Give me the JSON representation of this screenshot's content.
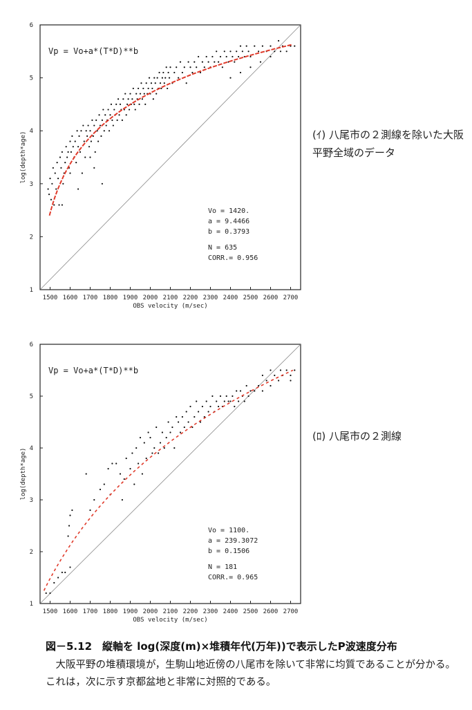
{
  "figure": {
    "caption": "図－5.12　縦軸を log(深度(m)×堆積年代(万年))で表示したP波速度分布",
    "body": "大阪平野の堆積環境が，生駒山地近傍の八尾市を除いて非常に均質であることが分かる。これは，次に示す京都盆地と非常に対照的である。"
  },
  "colors": {
    "fit_curve": "#e03a2a",
    "points": "#111111",
    "frame": "#222222",
    "diagonal": "#8a8a8a"
  },
  "chart_data": [
    {
      "type": "scatter",
      "panel_label": "(ｲ) 八尾市の２測線を除いた大阪平野全域のデータ",
      "xlabel": "OBS velocity (m/sec)",
      "ylabel": "log(depth*age)",
      "formula": "Vp = Vo+a*(T*D)**b",
      "xlim": [
        1450,
        2750
      ],
      "ylim": [
        1,
        6
      ],
      "x_ticks": [
        1500,
        1600,
        1700,
        1800,
        1900,
        2000,
        2100,
        2200,
        2300,
        2400,
        2500,
        2600,
        2700
      ],
      "y_ticks": [
        1,
        2,
        3,
        4,
        5,
        6
      ],
      "params": [
        "Vo = 1420.",
        "a = 9.4466",
        "b = 0.3793",
        "N     = 635",
        "CORR.= 0.956"
      ],
      "fit": {
        "Vo": 1420,
        "a": 9.4466,
        "b": 0.3793,
        "y_range": [
          2.4,
          5.63
        ]
      },
      "diagonal": [
        [
          1450,
          1
        ],
        [
          2750,
          6
        ]
      ],
      "points": [
        [
          1490,
          2.9
        ],
        [
          1495,
          2.8
        ],
        [
          1500,
          3.1
        ],
        [
          1505,
          2.7
        ],
        [
          1510,
          3.0
        ],
        [
          1515,
          3.3
        ],
        [
          1520,
          2.6
        ],
        [
          1525,
          3.2
        ],
        [
          1530,
          2.9
        ],
        [
          1535,
          3.4
        ],
        [
          1540,
          3.1
        ],
        [
          1545,
          2.6
        ],
        [
          1550,
          3.5
        ],
        [
          1555,
          3.3
        ],
        [
          1560,
          3.6
        ],
        [
          1565,
          3.0
        ],
        [
          1570,
          3.2
        ],
        [
          1575,
          3.4
        ],
        [
          1580,
          3.7
        ],
        [
          1585,
          3.5
        ],
        [
          1590,
          3.6
        ],
        [
          1595,
          3.3
        ],
        [
          1600,
          3.8
        ],
        [
          1605,
          3.6
        ],
        [
          1610,
          3.9
        ],
        [
          1615,
          3.7
        ],
        [
          1620,
          3.5
        ],
        [
          1625,
          3.8
        ],
        [
          1630,
          3.4
        ],
        [
          1635,
          4.0
        ],
        [
          1640,
          3.7
        ],
        [
          1645,
          3.9
        ],
        [
          1650,
          3.6
        ],
        [
          1655,
          4.0
        ],
        [
          1660,
          3.2
        ],
        [
          1665,
          4.1
        ],
        [
          1670,
          3.8
        ],
        [
          1675,
          3.5
        ],
        [
          1680,
          4.0
        ],
        [
          1685,
          3.9
        ],
        [
          1690,
          4.1
        ],
        [
          1695,
          3.7
        ],
        [
          1700,
          4.0
        ],
        [
          1705,
          3.8
        ],
        [
          1710,
          4.2
        ],
        [
          1715,
          3.9
        ],
        [
          1720,
          4.1
        ],
        [
          1725,
          3.6
        ],
        [
          1730,
          4.2
        ],
        [
          1735,
          4.0
        ],
        [
          1740,
          3.8
        ],
        [
          1745,
          4.3
        ],
        [
          1750,
          4.1
        ],
        [
          1755,
          3.9
        ],
        [
          1760,
          4.2
        ],
        [
          1765,
          4.4
        ],
        [
          1770,
          4.0
        ],
        [
          1775,
          4.3
        ],
        [
          1780,
          4.1
        ],
        [
          1785,
          4.2
        ],
        [
          1790,
          4.4
        ],
        [
          1795,
          4.0
        ],
        [
          1800,
          4.3
        ],
        [
          1805,
          4.5
        ],
        [
          1810,
          4.2
        ],
        [
          1815,
          4.1
        ],
        [
          1820,
          4.4
        ],
        [
          1825,
          4.3
        ],
        [
          1830,
          4.5
        ],
        [
          1835,
          4.2
        ],
        [
          1840,
          4.6
        ],
        [
          1845,
          4.3
        ],
        [
          1850,
          4.5
        ],
        [
          1855,
          4.4
        ],
        [
          1860,
          4.2
        ],
        [
          1865,
          4.6
        ],
        [
          1870,
          4.4
        ],
        [
          1875,
          4.7
        ],
        [
          1880,
          4.3
        ],
        [
          1885,
          4.5
        ],
        [
          1890,
          4.6
        ],
        [
          1895,
          4.4
        ],
        [
          1900,
          4.7
        ],
        [
          1905,
          4.5
        ],
        [
          1910,
          4.6
        ],
        [
          1915,
          4.8
        ],
        [
          1920,
          4.5
        ],
        [
          1925,
          4.4
        ],
        [
          1930,
          4.7
        ],
        [
          1935,
          4.6
        ],
        [
          1940,
          4.8
        ],
        [
          1945,
          4.5
        ],
        [
          1950,
          4.7
        ],
        [
          1955,
          4.9
        ],
        [
          1960,
          4.6
        ],
        [
          1965,
          4.8
        ],
        [
          1970,
          4.7
        ],
        [
          1975,
          4.5
        ],
        [
          1980,
          4.9
        ],
        [
          1985,
          4.7
        ],
        [
          1990,
          4.8
        ],
        [
          1995,
          5.0
        ],
        [
          2000,
          4.7
        ],
        [
          2005,
          4.9
        ],
        [
          2010,
          4.8
        ],
        [
          2015,
          4.6
        ],
        [
          2020,
          5.0
        ],
        [
          2025,
          4.9
        ],
        [
          2030,
          4.7
        ],
        [
          2035,
          5.0
        ],
        [
          2040,
          4.8
        ],
        [
          2045,
          5.1
        ],
        [
          2050,
          4.9
        ],
        [
          2055,
          4.8
        ],
        [
          2060,
          5.0
        ],
        [
          2065,
          5.1
        ],
        [
          2070,
          4.9
        ],
        [
          2075,
          5.0
        ],
        [
          2080,
          5.2
        ],
        [
          2085,
          4.8
        ],
        [
          2090,
          5.1
        ],
        [
          2095,
          5.0
        ],
        [
          2100,
          5.2
        ],
        [
          2110,
          4.9
        ],
        [
          2120,
          5.1
        ],
        [
          2130,
          5.2
        ],
        [
          2140,
          5.0
        ],
        [
          2150,
          5.3
        ],
        [
          2160,
          5.1
        ],
        [
          2170,
          5.2
        ],
        [
          2180,
          4.9
        ],
        [
          2190,
          5.3
        ],
        [
          2200,
          5.2
        ],
        [
          2210,
          5.1
        ],
        [
          2220,
          5.3
        ],
        [
          2230,
          5.2
        ],
        [
          2240,
          5.4
        ],
        [
          2250,
          5.1
        ],
        [
          2260,
          5.3
        ],
        [
          2270,
          5.2
        ],
        [
          2280,
          5.4
        ],
        [
          2290,
          5.3
        ],
        [
          2300,
          5.2
        ],
        [
          2310,
          5.4
        ],
        [
          2320,
          5.3
        ],
        [
          2330,
          5.5
        ],
        [
          2340,
          5.3
        ],
        [
          2350,
          5.4
        ],
        [
          2360,
          5.2
        ],
        [
          2370,
          5.5
        ],
        [
          2380,
          5.4
        ],
        [
          2390,
          5.3
        ],
        [
          2400,
          5.5
        ],
        [
          2410,
          5.4
        ],
        [
          2420,
          5.3
        ],
        [
          2430,
          5.5
        ],
        [
          2440,
          5.4
        ],
        [
          2450,
          5.6
        ],
        [
          2460,
          5.5
        ],
        [
          2470,
          5.4
        ],
        [
          2480,
          5.6
        ],
        [
          2490,
          5.5
        ],
        [
          2500,
          5.4
        ],
        [
          2520,
          5.6
        ],
        [
          2540,
          5.5
        ],
        [
          2560,
          5.6
        ],
        [
          2580,
          5.5
        ],
        [
          2600,
          5.6
        ],
        [
          2620,
          5.5
        ],
        [
          2640,
          5.7
        ],
        [
          2660,
          5.6
        ],
        [
          2680,
          5.5
        ],
        [
          2700,
          5.6
        ],
        [
          2720,
          5.6
        ],
        [
          1560,
          2.6
        ],
        [
          1600,
          3.2
        ],
        [
          1640,
          2.9
        ],
        [
          1700,
          3.5
        ],
        [
          1720,
          3.3
        ],
        [
          1760,
          3.0
        ],
        [
          2400,
          5.0
        ],
        [
          2450,
          5.1
        ],
        [
          2500,
          5.2
        ],
        [
          2550,
          5.3
        ],
        [
          2600,
          5.4
        ],
        [
          2650,
          5.5
        ]
      ]
    },
    {
      "type": "scatter",
      "panel_label": "(ﾛ) 八尾市の２測線",
      "xlabel": "OBS velocity (m/sec)",
      "ylabel": "log(depth*age)",
      "formula": "Vp = Vo+a*(T*D)**b",
      "xlim": [
        1450,
        2750
      ],
      "ylim": [
        1,
        6
      ],
      "x_ticks": [
        1500,
        1600,
        1700,
        1800,
        1900,
        2000,
        2100,
        2200,
        2300,
        2400,
        2500,
        2600,
        2700
      ],
      "y_ticks": [
        1,
        2,
        3,
        4,
        5,
        6
      ],
      "params": [
        "Vo = 1100.",
        "a = 239.3072",
        "b = 0.1506",
        "N     = 181",
        "CORR.= 0.965"
      ],
      "fit": {
        "Vo": 1100,
        "a": 239.3072,
        "b": 0.1506,
        "y_range": [
          1.25,
          5.5
        ]
      },
      "diagonal": [
        [
          1450,
          1
        ],
        [
          2750,
          6
        ]
      ],
      "points": [
        [
          1480,
          1.2
        ],
        [
          1500,
          1.2
        ],
        [
          1520,
          1.4
        ],
        [
          1540,
          1.5
        ],
        [
          1560,
          1.6
        ],
        [
          1575,
          1.6
        ],
        [
          1590,
          2.3
        ],
        [
          1595,
          2.5
        ],
        [
          1600,
          2.7
        ],
        [
          1610,
          2.8
        ],
        [
          1600,
          1.7
        ],
        [
          1680,
          3.5
        ],
        [
          1700,
          2.8
        ],
        [
          1720,
          3.0
        ],
        [
          1750,
          3.2
        ],
        [
          1770,
          3.3
        ],
        [
          1790,
          3.6
        ],
        [
          1800,
          3.1
        ],
        [
          1810,
          3.7
        ],
        [
          1830,
          3.7
        ],
        [
          1850,
          3.5
        ],
        [
          1860,
          3.0
        ],
        [
          1870,
          3.4
        ],
        [
          1880,
          3.8
        ],
        [
          1900,
          3.6
        ],
        [
          1910,
          3.9
        ],
        [
          1920,
          3.3
        ],
        [
          1930,
          4.0
        ],
        [
          1940,
          3.7
        ],
        [
          1950,
          4.2
        ],
        [
          1960,
          3.5
        ],
        [
          1970,
          4.1
        ],
        [
          1980,
          3.8
        ],
        [
          1990,
          4.3
        ],
        [
          2000,
          4.2
        ],
        [
          2010,
          3.9
        ],
        [
          2020,
          4.0
        ],
        [
          2030,
          4.4
        ],
        [
          2040,
          3.9
        ],
        [
          2050,
          4.1
        ],
        [
          2060,
          4.3
        ],
        [
          2070,
          4.0
        ],
        [
          2080,
          4.2
        ],
        [
          2090,
          4.5
        ],
        [
          2100,
          4.3
        ],
        [
          2110,
          4.4
        ],
        [
          2120,
          4.0
        ],
        [
          2130,
          4.6
        ],
        [
          2140,
          4.5
        ],
        [
          2150,
          4.3
        ],
        [
          2160,
          4.6
        ],
        [
          2170,
          4.4
        ],
        [
          2180,
          4.7
        ],
        [
          2190,
          4.5
        ],
        [
          2200,
          4.8
        ],
        [
          2210,
          4.4
        ],
        [
          2220,
          4.6
        ],
        [
          2230,
          4.9
        ],
        [
          2240,
          4.7
        ],
        [
          2250,
          4.5
        ],
        [
          2260,
          4.8
        ],
        [
          2270,
          4.6
        ],
        [
          2280,
          4.9
        ],
        [
          2290,
          4.7
        ],
        [
          2300,
          4.8
        ],
        [
          2310,
          5.0
        ],
        [
          2320,
          4.7
        ],
        [
          2330,
          4.9
        ],
        [
          2340,
          4.8
        ],
        [
          2350,
          5.0
        ],
        [
          2360,
          4.8
        ],
        [
          2370,
          4.9
        ],
        [
          2380,
          5.0
        ],
        [
          2390,
          4.9
        ],
        [
          2400,
          4.9
        ],
        [
          2410,
          5.0
        ],
        [
          2420,
          4.8
        ],
        [
          2430,
          5.1
        ],
        [
          2440,
          4.9
        ],
        [
          2450,
          5.1
        ],
        [
          2460,
          5.0
        ],
        [
          2470,
          4.9
        ],
        [
          2480,
          5.2
        ],
        [
          2490,
          5.0
        ],
        [
          2500,
          5.1
        ],
        [
          2520,
          5.1
        ],
        [
          2540,
          5.2
        ],
        [
          2560,
          5.1
        ],
        [
          2580,
          5.3
        ],
        [
          2600,
          5.2
        ],
        [
          2620,
          5.4
        ],
        [
          2640,
          5.3
        ],
        [
          2660,
          5.4
        ],
        [
          2680,
          5.5
        ],
        [
          2700,
          5.4
        ],
        [
          2720,
          5.5
        ],
        [
          2560,
          5.4
        ],
        [
          2600,
          5.5
        ],
        [
          2650,
          5.5
        ],
        [
          2700,
          5.3
        ]
      ]
    }
  ]
}
